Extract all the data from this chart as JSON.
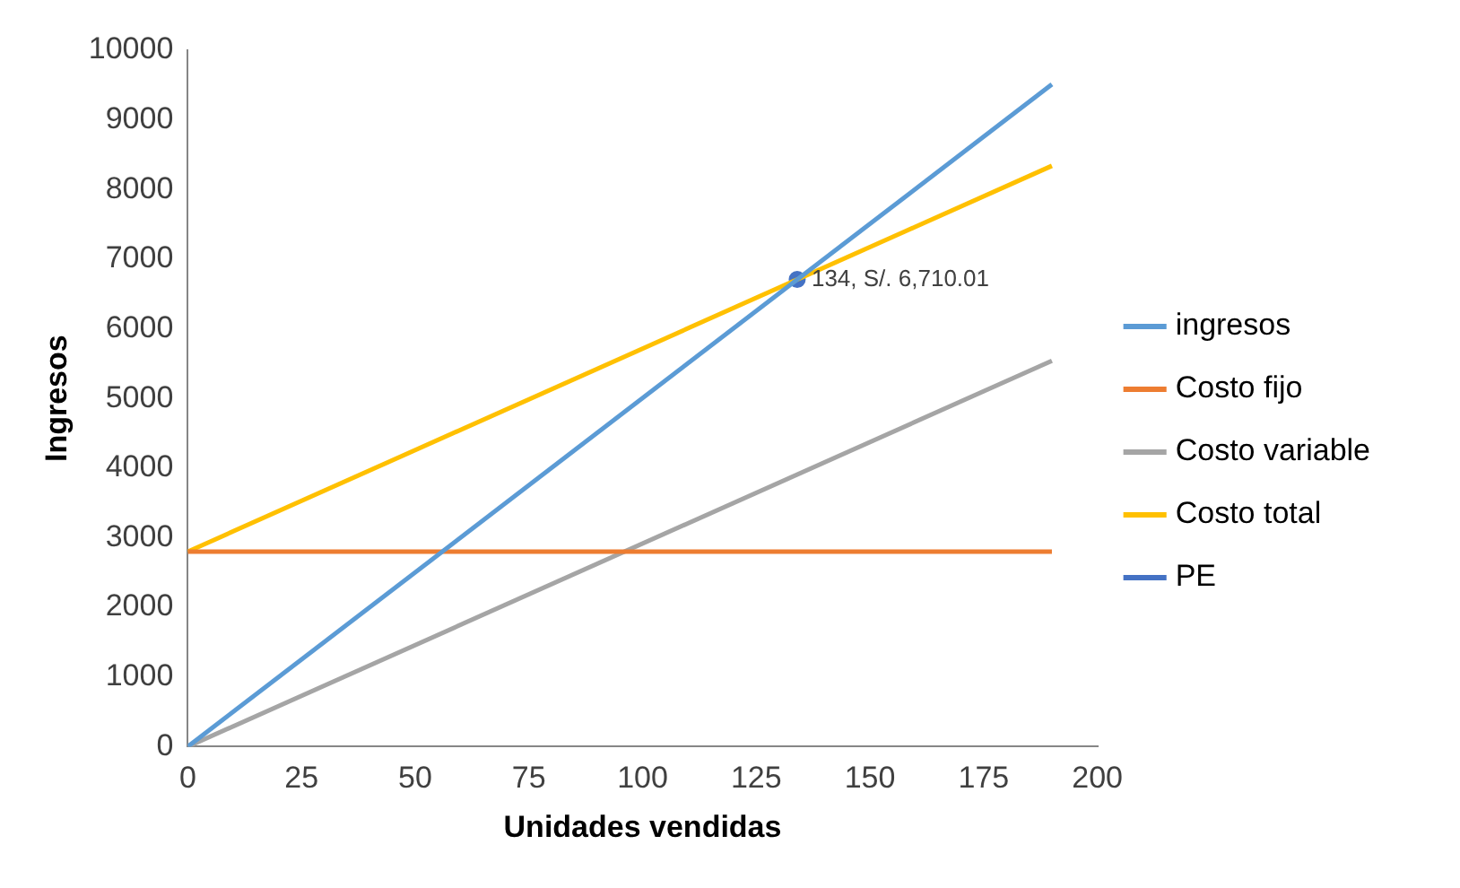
{
  "chart_data": {
    "type": "line",
    "xlabel": "Unidades vendidas",
    "ylabel": "Ingresos",
    "xlim": [
      0,
      200
    ],
    "xticks": [
      0,
      25,
      50,
      75,
      100,
      125,
      150,
      175,
      200
    ],
    "ylim": [
      0,
      10000
    ],
    "yticks": [
      0,
      1000,
      2000,
      3000,
      4000,
      5000,
      6000,
      7000,
      8000,
      9000,
      10000
    ],
    "grid": false,
    "legend": "right",
    "marker": "none",
    "series": [
      {
        "name": "ingresos",
        "color": "#5b9bd5",
        "x": [
          0,
          190
        ],
        "values": [
          0,
          9510
        ]
      },
      {
        "name": "Costo fijo",
        "color": "#ed7d31",
        "x": [
          0,
          190
        ],
        "values": [
          2800,
          2800
        ]
      },
      {
        "name": "Costo variable",
        "color": "#a5a5a5",
        "x": [
          0,
          190
        ],
        "values": [
          0,
          5540
        ]
      },
      {
        "name": "Costo total",
        "color": "#ffc000",
        "x": [
          0,
          190
        ],
        "values": [
          2800,
          8340
        ]
      },
      {
        "name": "PE",
        "color": "#4472c4",
        "x": [
          134
        ],
        "values": [
          6710.01
        ],
        "marker": "circle"
      }
    ],
    "annotations": [
      {
        "text": "134, S/. 6,710.01",
        "x": 134,
        "y": 6710.01
      }
    ]
  }
}
